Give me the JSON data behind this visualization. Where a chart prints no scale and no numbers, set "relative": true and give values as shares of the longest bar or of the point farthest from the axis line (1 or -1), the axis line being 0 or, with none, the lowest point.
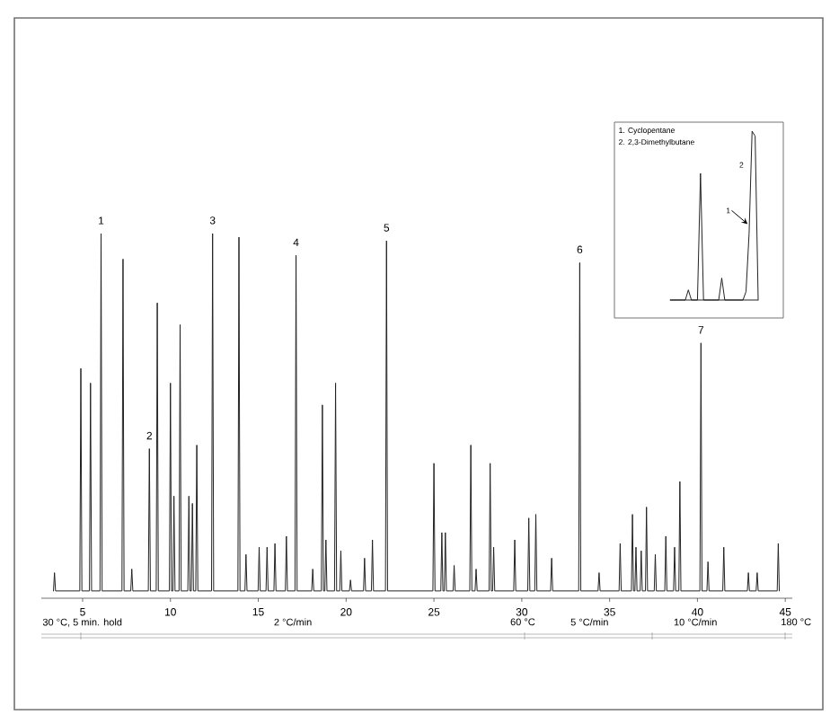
{
  "chart_data": [
    {
      "type": "line",
      "relative": true,
      "xlim": [
        2.65,
        45.4
      ],
      "xticks": [
        5,
        10,
        15,
        20,
        25,
        30,
        35,
        40,
        45
      ],
      "x": [
        3.34,
        3.4,
        3.46,
        4.84,
        4.9,
        4.96,
        5.39,
        5.45,
        5.51,
        5.99,
        6.05,
        6.11,
        7.24,
        7.3,
        7.36,
        7.74,
        7.8,
        7.86,
        8.74,
        8.8,
        8.86,
        9.19,
        9.25,
        9.31,
        9.94,
        10.0,
        10.06,
        10.14,
        10.2,
        10.26,
        10.49,
        10.55,
        10.61,
        10.99,
        11.05,
        11.11,
        11.19,
        11.25,
        11.31,
        11.44,
        11.5,
        11.56,
        12.34,
        12.4,
        12.46,
        13.84,
        13.9,
        13.96,
        14.24,
        14.3,
        14.36,
        14.99,
        15.05,
        15.11,
        15.44,
        15.5,
        15.56,
        15.89,
        15.95,
        16.01,
        16.54,
        16.6,
        16.66,
        17.09,
        17.15,
        17.21,
        18.04,
        18.1,
        18.16,
        18.59,
        18.65,
        18.71,
        18.79,
        18.85,
        18.91,
        19.34,
        19.4,
        19.46,
        19.64,
        19.7,
        19.76,
        20.19,
        20.25,
        20.31,
        20.99,
        21.05,
        21.11,
        21.44,
        21.5,
        21.56,
        22.24,
        22.3,
        22.36,
        24.94,
        25.0,
        25.06,
        25.39,
        25.45,
        25.51,
        25.59,
        25.65,
        25.71,
        26.09,
        26.15,
        26.21,
        27.04,
        27.1,
        27.16,
        27.34,
        27.4,
        27.46,
        28.14,
        28.2,
        28.26,
        28.34,
        28.4,
        28.46,
        29.54,
        29.6,
        29.66,
        30.34,
        30.4,
        30.46,
        30.74,
        30.8,
        30.86,
        31.64,
        31.7,
        31.76,
        33.24,
        33.3,
        33.36,
        34.34,
        34.4,
        34.46,
        35.54,
        35.6,
        35.66,
        36.24,
        36.3,
        36.36,
        36.44,
        36.5,
        36.56,
        36.74,
        36.8,
        36.86,
        37.04,
        37.1,
        37.16,
        37.54,
        37.6,
        37.66,
        38.14,
        38.2,
        38.26,
        38.64,
        38.7,
        38.76,
        38.94,
        39.0,
        39.06,
        40.14,
        40.2,
        40.26,
        40.54,
        40.6,
        40.66,
        41.44,
        41.5,
        41.56,
        42.84,
        42.9,
        42.96,
        43.34,
        43.4,
        43.46,
        44.54,
        44.6,
        44.66
      ],
      "series": [
        {
          "color": "#222222",
          "values": [
            0.02,
            0.07,
            0.02,
            0.02,
            0.63,
            0.02,
            0.02,
            0.59,
            0.02,
            0.02,
            1.0,
            0.02,
            0.02,
            0.93,
            0.02,
            0.02,
            0.08,
            0.02,
            0.02,
            0.41,
            0.02,
            0.02,
            0.81,
            0.02,
            0.02,
            0.59,
            0.02,
            0.02,
            0.28,
            0.02,
            0.02,
            0.75,
            0.02,
            0.02,
            0.28,
            0.02,
            0.02,
            0.26,
            0.02,
            0.02,
            0.42,
            0.02,
            0.02,
            1.0,
            0.02,
            0.02,
            0.99,
            0.02,
            0.02,
            0.12,
            0.02,
            0.02,
            0.14,
            0.02,
            0.02,
            0.14,
            0.02,
            0.02,
            0.15,
            0.02,
            0.02,
            0.17,
            0.02,
            0.02,
            0.94,
            0.02,
            0.02,
            0.08,
            0.02,
            0.02,
            0.53,
            0.02,
            0.02,
            0.16,
            0.02,
            0.02,
            0.59,
            0.02,
            0.02,
            0.13,
            0.02,
            0.02,
            0.05,
            0.02,
            0.02,
            0.11,
            0.02,
            0.02,
            0.16,
            0.02,
            0.02,
            0.98,
            0.02,
            0.02,
            0.37,
            0.02,
            0.02,
            0.18,
            0.02,
            0.02,
            0.18,
            0.02,
            0.02,
            0.09,
            0.02,
            0.02,
            0.42,
            0.02,
            0.02,
            0.08,
            0.02,
            0.02,
            0.37,
            0.02,
            0.02,
            0.14,
            0.02,
            0.02,
            0.16,
            0.02,
            0.02,
            0.22,
            0.02,
            0.02,
            0.23,
            0.02,
            0.02,
            0.11,
            0.02,
            0.02,
            0.92,
            0.02,
            0.02,
            0.07,
            0.02,
            0.02,
            0.15,
            0.02,
            0.02,
            0.23,
            0.02,
            0.02,
            0.14,
            0.02,
            0.02,
            0.13,
            0.02,
            0.02,
            0.25,
            0.02,
            0.02,
            0.12,
            0.02,
            0.02,
            0.17,
            0.02,
            0.02,
            0.14,
            0.02,
            0.02,
            0.32,
            0.02,
            0.02,
            0.7,
            0.02,
            0.02,
            0.1,
            0.02,
            0.02,
            0.14,
            0.02,
            0.02,
            0.07,
            0.02,
            0.02,
            0.07,
            0.02,
            0.02,
            0.15,
            0.02
          ]
        }
      ],
      "annotations": [
        {
          "text": "1",
          "x": 6.05,
          "y": 1.0
        },
        {
          "text": "2",
          "x": 8.8,
          "y": 0.41
        },
        {
          "text": "3",
          "x": 12.4,
          "y": 1.0
        },
        {
          "text": "4",
          "x": 17.15,
          "y": 0.94
        },
        {
          "text": "5",
          "x": 22.3,
          "y": 0.98
        },
        {
          "text": "6",
          "x": 33.3,
          "y": 0.92
        },
        {
          "text": "7",
          "x": 40.2,
          "y": 0.7
        },
        "30 °C, 5 min. hold",
        "2 °C/min",
        "60 °C",
        "5 °C/min",
        "10 °C/min",
        "180 °C"
      ]
    },
    {
      "type": "line",
      "relative": true,
      "categories": [
        null,
        null,
        null,
        null,
        null,
        null,
        null,
        null,
        null,
        null,
        null,
        null,
        null,
        null,
        null,
        null,
        null,
        null,
        null,
        null,
        null,
        null,
        null,
        null,
        null,
        null,
        null,
        null,
        null,
        null
      ],
      "series": [
        {
          "color": "#222222",
          "values": [
            0,
            0,
            0,
            0,
            0,
            0,
            0.06,
            0,
            0,
            0,
            0.75,
            0,
            0,
            0,
            0,
            0,
            0,
            0.13,
            0,
            0,
            0,
            0,
            0,
            0,
            0,
            0.05,
            0.39,
            1.0,
            0.97,
            0
          ]
        }
      ],
      "annotations": [
        "1. Cyclopentane",
        "2. 2,3-Dimethylbutane",
        "2",
        "1"
      ]
    }
  ]
}
